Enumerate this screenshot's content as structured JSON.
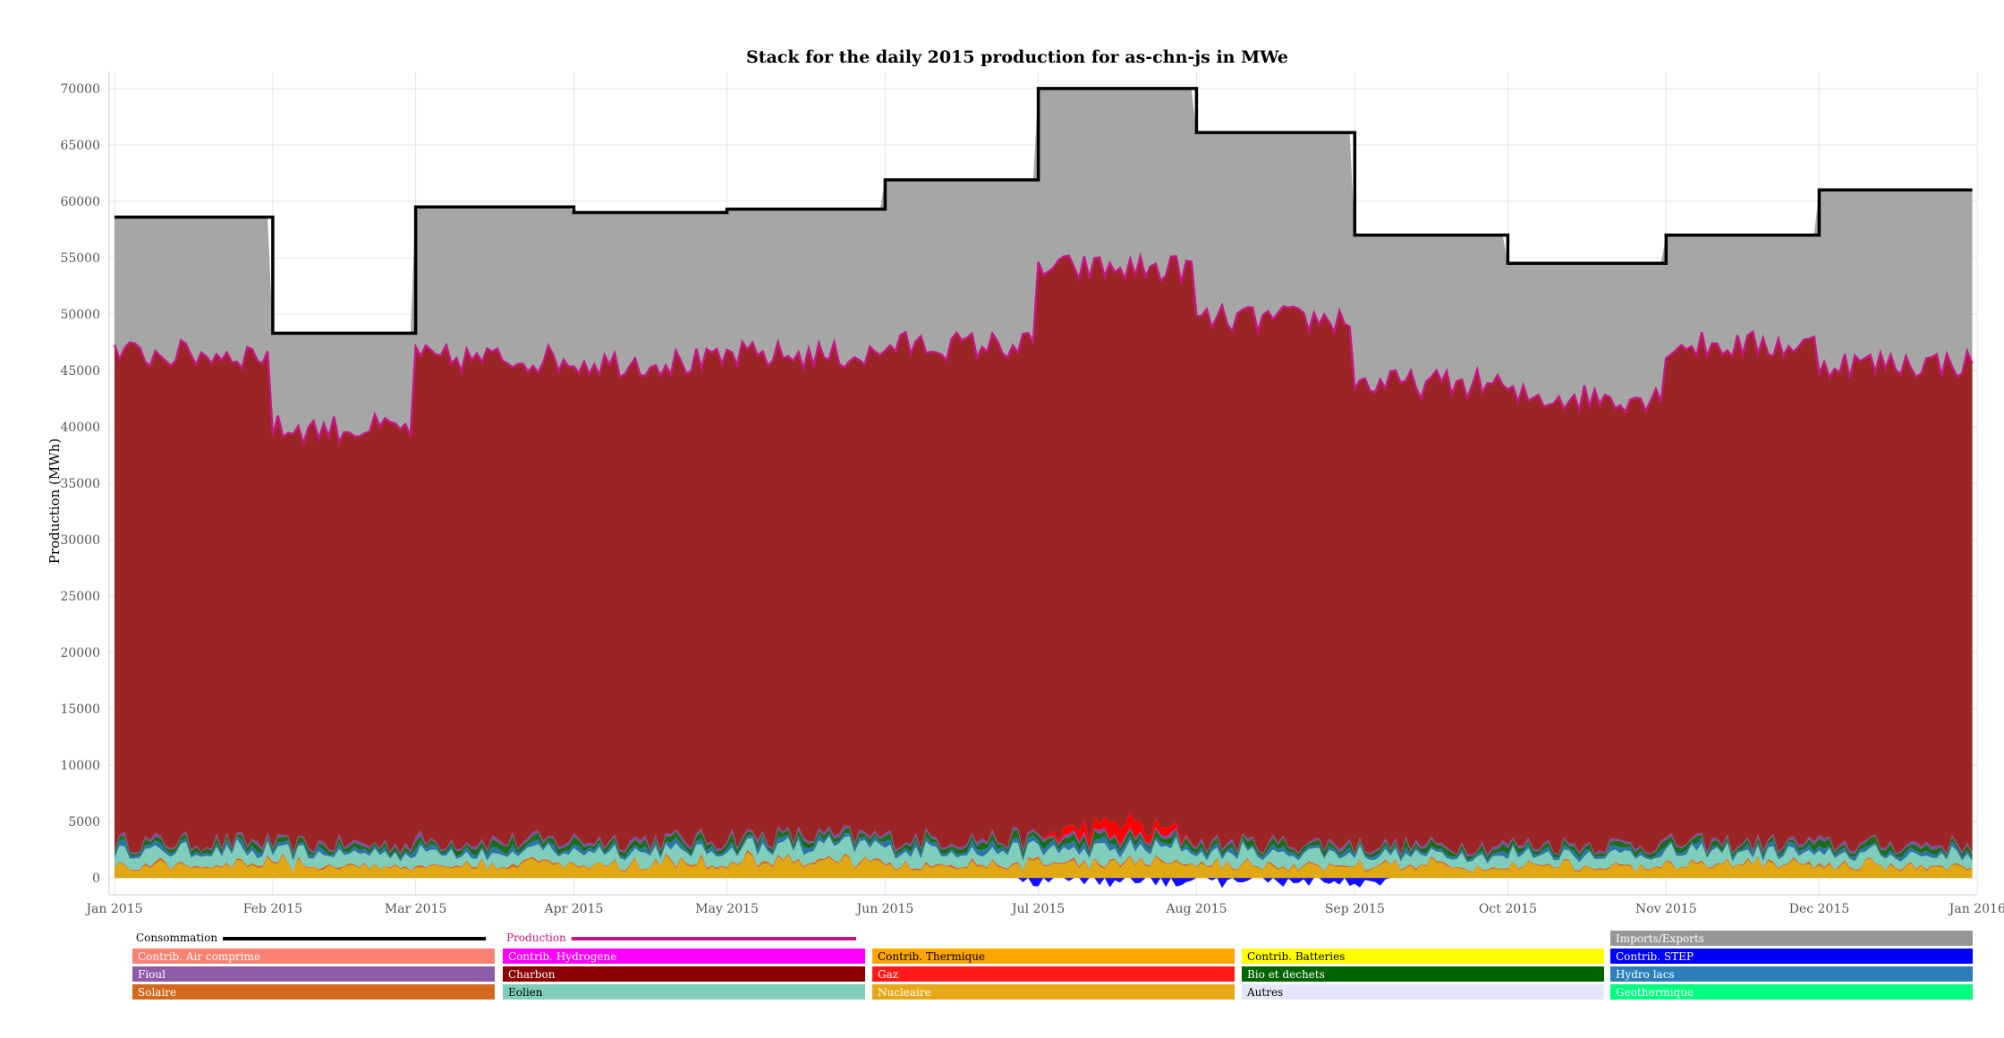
{
  "chart_data": {
    "type": "area",
    "title": "Stack for the daily 2015 production for as-chn-js in MWe",
    "ylabel": "Production (MWh)",
    "xlabel": "",
    "ylim": [
      -1500,
      71500
    ],
    "xlim": [
      0,
      366
    ],
    "yticks": [
      0,
      5000,
      10000,
      15000,
      20000,
      25000,
      30000,
      35000,
      40000,
      45000,
      50000,
      55000,
      60000,
      65000,
      70000
    ],
    "xticks": [
      {
        "label": "Jan 2015",
        "day": 0
      },
      {
        "label": "Feb 2015",
        "day": 31
      },
      {
        "label": "Mar 2015",
        "day": 59
      },
      {
        "label": "Apr 2015",
        "day": 90
      },
      {
        "label": "May 2015",
        "day": 120
      },
      {
        "label": "Jun 2015",
        "day": 151
      },
      {
        "label": "Jul 2015",
        "day": 181
      },
      {
        "label": "Aug 2015",
        "day": 212
      },
      {
        "label": "Sep 2015",
        "day": 243
      },
      {
        "label": "Oct 2015",
        "day": 273
      },
      {
        "label": "Nov 2015",
        "day": 304
      },
      {
        "label": "Dec 2015",
        "day": 334
      },
      {
        "label": "Jan 2016",
        "day": 365
      }
    ],
    "grid": true,
    "legend_position": "bottom",
    "consumption_monthly": [
      {
        "start": 0,
        "end": 31,
        "value": 58600
      },
      {
        "start": 31,
        "end": 59,
        "value": 48300
      },
      {
        "start": 59,
        "end": 90,
        "value": 59500
      },
      {
        "start": 90,
        "end": 120,
        "value": 59000
      },
      {
        "start": 120,
        "end": 151,
        "value": 59300
      },
      {
        "start": 151,
        "end": 181,
        "value": 61900
      },
      {
        "start": 181,
        "end": 212,
        "value": 70000
      },
      {
        "start": 212,
        "end": 243,
        "value": 66100
      },
      {
        "start": 243,
        "end": 273,
        "value": 57000
      },
      {
        "start": 273,
        "end": 304,
        "value": 54500
      },
      {
        "start": 304,
        "end": 334,
        "value": 57000
      },
      {
        "start": 334,
        "end": 365,
        "value": 61000
      }
    ],
    "production_monthly": [
      {
        "start": 0,
        "end": 31,
        "value": 46400
      },
      {
        "start": 31,
        "end": 59,
        "value": 39800
      },
      {
        "start": 59,
        "end": 90,
        "value": 46000
      },
      {
        "start": 90,
        "end": 120,
        "value": 45700
      },
      {
        "start": 120,
        "end": 151,
        "value": 46300
      },
      {
        "start": 151,
        "end": 181,
        "value": 47200
      },
      {
        "start": 181,
        "end": 212,
        "value": 54000
      },
      {
        "start": 212,
        "end": 243,
        "value": 49500
      },
      {
        "start": 243,
        "end": 273,
        "value": 43800
      },
      {
        "start": 273,
        "end": 304,
        "value": 42600
      },
      {
        "start": 304,
        "end": 334,
        "value": 47200
      },
      {
        "start": 334,
        "end": 365,
        "value": 45600
      }
    ],
    "base_stack_monthly": [
      {
        "start": 0,
        "end": 31,
        "value": 3200
      },
      {
        "start": 31,
        "end": 59,
        "value": 3000
      },
      {
        "start": 59,
        "end": 90,
        "value": 3300
      },
      {
        "start": 90,
        "end": 120,
        "value": 3400
      },
      {
        "start": 120,
        "end": 151,
        "value": 3700
      },
      {
        "start": 151,
        "end": 181,
        "value": 3500
      },
      {
        "start": 181,
        "end": 212,
        "value": 3600
      },
      {
        "start": 212,
        "end": 243,
        "value": 3100
      },
      {
        "start": 243,
        "end": 273,
        "value": 2900
      },
      {
        "start": 273,
        "end": 304,
        "value": 3000
      },
      {
        "start": 304,
        "end": 334,
        "value": 3100
      },
      {
        "start": 334,
        "end": 365,
        "value": 3000
      }
    ],
    "gas_bump": {
      "start": 181,
      "end": 212,
      "peak": 1200
    },
    "step_dips": {
      "start": 178,
      "end": 250,
      "min": -900
    },
    "series": [
      {
        "name": "Nucleaire",
        "color": "#e0a812",
        "share": 0.34
      },
      {
        "name": "Solaire",
        "color": "#d2691e",
        "share": 0.04
      },
      {
        "name": "Eolien",
        "color": "#7fcdbb",
        "share": 0.34
      },
      {
        "name": "Hydro lacs",
        "color": "#2a76a8",
        "share": 0.1
      },
      {
        "name": "Bio et dechets",
        "color": "#1a6b1a",
        "share": 0.12
      },
      {
        "name": "Fioul",
        "color": "#7b4fa0",
        "share": 0.06
      },
      {
        "name": "Gaz",
        "color": "#ff0000"
      },
      {
        "name": "Charbon",
        "color": "#9b2424"
      },
      {
        "name": "Contrib. STEP",
        "color": "#1010ff"
      },
      {
        "name": "Imports/Exports",
        "color": "#a6a6a6"
      }
    ]
  },
  "legend": {
    "rows": [
      [
        {
          "label": "Consommation",
          "type": "line",
          "color": "#000000",
          "text_color": "#000000"
        },
        {
          "label": "Production",
          "type": "line",
          "color": "#c71585",
          "text_color": "#c71585"
        },
        null,
        null,
        {
          "label": "Imports/Exports",
          "type": "box",
          "color": "#969696",
          "text_color": "#ffffff"
        }
      ],
      [
        {
          "label": "Contrib. Air comprime",
          "type": "box",
          "color": "#fa8072",
          "text_color": "#ffffff"
        },
        {
          "label": "Contrib. Hydrogene",
          "type": "box",
          "color": "#ff00ff",
          "text_color": "#ffffff"
        },
        {
          "label": "Contrib. Thermique",
          "type": "box",
          "color": "#ffa500",
          "text_color": "#000000"
        },
        {
          "label": "Contrib. Batteries",
          "type": "box",
          "color": "#ffff00",
          "text_color": "#000000"
        },
        {
          "label": "Contrib. STEP",
          "type": "box",
          "color": "#0000ff",
          "text_color": "#ffffff"
        }
      ],
      [
        {
          "label": "Fioul",
          "type": "box",
          "color": "#8e5ba6",
          "text_color": "#ffffff"
        },
        {
          "label": "Charbon",
          "type": "box",
          "color": "#8b0000",
          "text_color": "#ffffff"
        },
        {
          "label": "Gaz",
          "type": "box",
          "color": "#ff1a1a",
          "text_color": "#ffffff"
        },
        {
          "label": "Bio et dechets",
          "type": "box",
          "color": "#006400",
          "text_color": "#ffffff"
        },
        {
          "label": "Hydro lacs",
          "type": "box",
          "color": "#2c7fb8",
          "text_color": "#ffffff"
        }
      ],
      [
        {
          "label": "Solaire",
          "type": "box",
          "color": "#d2691e",
          "text_color": "#ffffff"
        },
        {
          "label": "Eolien",
          "type": "box",
          "color": "#7fcdbb",
          "text_color": "#000000"
        },
        {
          "label": "Nucleaire",
          "type": "box",
          "color": "#e6a817",
          "text_color": "#ffffff"
        },
        {
          "label": "Autres",
          "type": "box",
          "color": "#e6e6fa",
          "text_color": "#000000"
        },
        {
          "label": "Geothermique",
          "type": "box",
          "color": "#00ff7f",
          "text_color": "#ffffff"
        }
      ]
    ]
  }
}
